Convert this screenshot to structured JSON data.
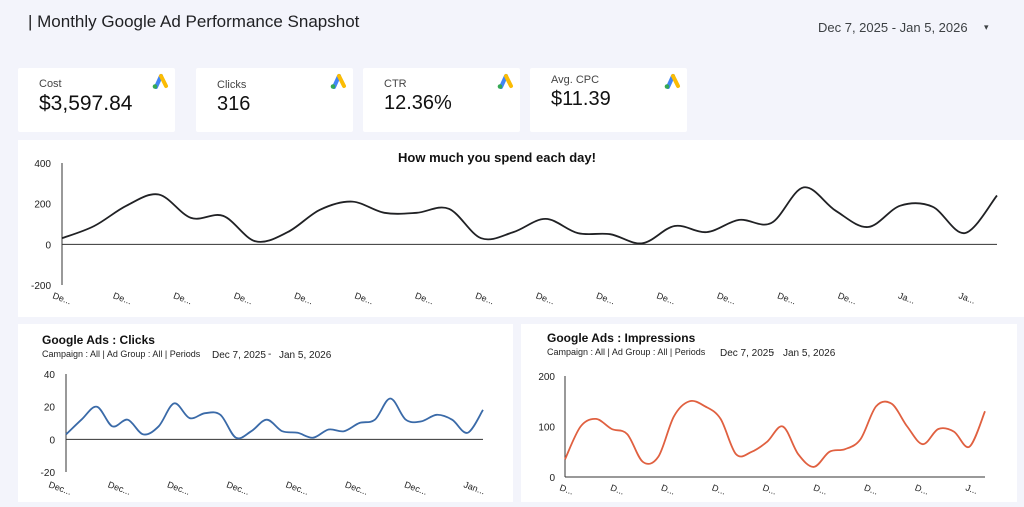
{
  "header": {
    "title": "| Monthly Google Ad Performance Snapshot",
    "date_range": "Dec 7, 2025 - Jan 5, 2026",
    "caret": "▾"
  },
  "kpis": [
    {
      "label": "Cost",
      "value": "$3,597.84",
      "icon": "google-ads-logo"
    },
    {
      "label": "Clicks",
      "value": "316",
      "icon": "google-ads-logo"
    },
    {
      "label": "CTR",
      "value": "12.36%",
      "icon": "google-ads-logo"
    },
    {
      "label": "Avg. CPC",
      "value": "$11.39",
      "icon": "google-ads-logo"
    }
  ],
  "colors": {
    "spend": "#202124",
    "clicks": "#3a6aa8",
    "impressions": "#e06040"
  },
  "panels": {
    "clicks": {
      "title": "Google Ads : Clicks",
      "filters": "Campaign : All | Ad Group : All | Periods",
      "date_start": "Dec 7, 2025",
      "date_sep": "-",
      "date_end": "Jan 5, 2026"
    },
    "impressions": {
      "title": "Google Ads : Impressions",
      "filters": "Campaign : All | Ad Group : All | Periods",
      "date_start": "Dec 7, 2025",
      "date_sep": "-",
      "date_end": "Jan 5, 2026"
    }
  },
  "chart_data": [
    {
      "type": "line",
      "title": "How much you spend each day!",
      "ylim": [
        -200,
        400
      ],
      "yticks": [
        "400",
        "200",
        "0",
        "-200"
      ],
      "xticks": [
        "De...",
        "De...",
        "De...",
        "De...",
        "De...",
        "De...",
        "De...",
        "De...",
        "De...",
        "De...",
        "De...",
        "De...",
        "De...",
        "De...",
        "Ja...",
        "Ja..."
      ],
      "series": [
        {
          "values": [
            30,
            90,
            190,
            245,
            130,
            140,
            15,
            60,
            170,
            210,
            155,
            155,
            175,
            30,
            60,
            125,
            55,
            50,
            5,
            90,
            60,
            120,
            105,
            280,
            165,
            85,
            190,
            185,
            55,
            240
          ]
        }
      ]
    },
    {
      "type": "line",
      "title": "Google Ads : Clicks",
      "ylim": [
        -20,
        40
      ],
      "yticks": [
        "40",
        "20",
        "0",
        "-20"
      ],
      "xticks": [
        "Dec...",
        "Dec...",
        "Dec...",
        "Dec...",
        "Dec...",
        "Dec...",
        "Dec...",
        "Jan..."
      ],
      "series": [
        {
          "values": [
            3,
            12,
            20,
            8,
            12,
            3,
            8,
            22,
            13,
            16,
            15,
            1,
            5,
            12,
            5,
            4,
            1,
            6,
            5,
            10,
            12,
            25,
            12,
            11,
            15,
            12,
            4,
            18
          ]
        }
      ]
    },
    {
      "type": "line",
      "title": "Google Ads : Impressions",
      "ylim": [
        0,
        200
      ],
      "yticks": [
        "200",
        "100",
        "0"
      ],
      "xticks": [
        "D...",
        "D...",
        "D...",
        "D...",
        "D...",
        "D...",
        "D...",
        "D...",
        "J..."
      ],
      "series": [
        {
          "values": [
            35,
            100,
            115,
            95,
            85,
            30,
            40,
            120,
            150,
            140,
            115,
            45,
            50,
            70,
            100,
            45,
            20,
            50,
            55,
            75,
            140,
            145,
            100,
            65,
            95,
            90,
            60,
            130
          ]
        }
      ]
    }
  ]
}
